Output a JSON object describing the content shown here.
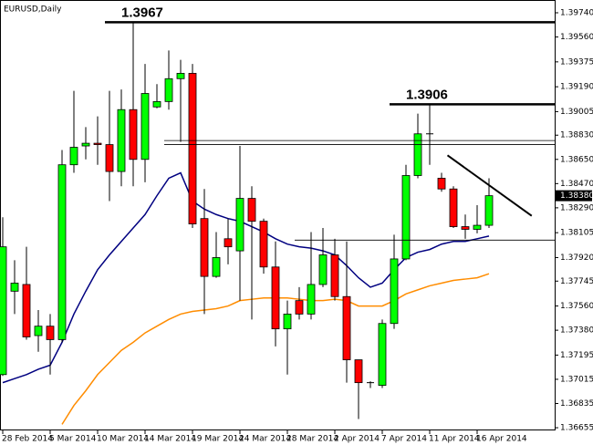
{
  "chart_data": {
    "type": "candlestick",
    "title": "EURUSD,Daily",
    "categories": [
      "28 Feb 2014",
      null,
      null,
      null,
      "5 Mar 2014",
      null,
      null,
      null,
      "10 Mar 2014",
      null,
      null,
      null,
      "14 Mar 2014",
      null,
      null,
      null,
      "19 Mar 2014",
      null,
      null,
      null,
      "24 Mar 2014",
      null,
      null,
      null,
      "28 Mar 2014",
      null,
      null,
      null,
      "2 Apr 2014",
      null,
      null,
      null,
      "7 Apr 2014",
      null,
      null,
      null,
      "11 Apr 2014",
      null,
      null,
      null,
      "16 Apr 2014",
      null
    ],
    "open": [
      1.3705,
      1.3767,
      1.3772,
      1.3734,
      1.3741,
      1.3731,
      1.3861,
      1.3875,
      1.3877,
      1.3876,
      1.3856,
      1.3902,
      1.3865,
      1.3904,
      1.3908,
      1.3925,
      1.3929,
      1.3821,
      1.3778,
      1.3806,
      1.3797,
      1.3836,
      1.3819,
      1.3785,
      1.3739,
      1.376,
      1.375,
      1.3772,
      1.3794,
      1.3763,
      1.3716,
      1.3699,
      1.3697,
      1.3743,
      1.3791,
      1.3853,
      1.3884,
      1.3851,
      1.3843,
      1.3815,
      1.3813,
      1.3816
    ],
    "high": [
      1.3822,
      1.379,
      1.38,
      1.3753,
      1.375,
      1.3872,
      1.3916,
      1.3889,
      1.3897,
      1.3916,
      1.3917,
      1.3967,
      1.3936,
      1.3921,
      1.3946,
      1.3939,
      1.3936,
      1.3843,
      1.3811,
      1.3821,
      1.3875,
      1.3845,
      1.3821,
      1.3804,
      1.376,
      1.377,
      1.3811,
      1.3814,
      1.3806,
      1.3804,
      1.3716,
      1.37,
      1.3746,
      1.3809,
      1.3861,
      1.3899,
      1.3906,
      1.3855,
      1.3845,
      1.3824,
      1.3831,
      1.3851
    ],
    "low": [
      1.3704,
      1.375,
      1.3731,
      1.3722,
      1.3705,
      1.3729,
      1.3855,
      1.3865,
      1.3861,
      1.3834,
      1.3845,
      1.3845,
      1.3848,
      1.3903,
      1.3902,
      1.3878,
      1.3814,
      1.375,
      1.3777,
      1.3787,
      1.376,
      1.3746,
      1.378,
      1.3726,
      1.3705,
      1.3746,
      1.3746,
      1.377,
      1.376,
      1.3699,
      1.3672,
      1.3695,
      1.3695,
      1.3739,
      1.379,
      1.3851,
      1.3861,
      1.3841,
      1.3814,
      1.3806,
      1.381,
      1.3814
    ],
    "close": [
      1.38,
      1.3773,
      1.3733,
      1.3741,
      1.3731,
      1.3861,
      1.3874,
      1.3877,
      1.3876,
      1.3856,
      1.3902,
      1.3865,
      1.3914,
      1.3908,
      1.3925,
      1.3929,
      1.3817,
      1.3778,
      1.3792,
      1.38,
      1.3836,
      1.3819,
      1.3785,
      1.3739,
      1.375,
      1.375,
      1.3772,
      1.3794,
      1.3763,
      1.3716,
      1.3699,
      1.3699,
      1.3743,
      1.3791,
      1.3853,
      1.3884,
      1.3884,
      1.3843,
      1.3815,
      1.3813,
      1.3816,
      1.3838
    ],
    "up_color": "#00ff00",
    "down_color": "#ff0000",
    "series": [
      {
        "color": "#000080",
        "values": [
          1.3699,
          1.3702,
          1.3705,
          1.3709,
          1.3712,
          1.3729,
          1.375,
          1.3767,
          1.3783,
          1.3794,
          1.3804,
          1.3814,
          1.3824,
          1.3838,
          1.3851,
          1.3855,
          1.3834,
          1.3828,
          1.3824,
          1.3821,
          1.3819,
          1.3815,
          1.3811,
          1.3806,
          1.3802,
          1.38,
          1.3799,
          1.3797,
          1.3794,
          1.3786,
          1.3777,
          1.377,
          1.3773,
          1.3783,
          1.3792,
          1.3796,
          1.3798,
          1.3802,
          1.3804,
          1.3804,
          1.3806,
          1.3808
        ]
      },
      {
        "color": "#ff8c00",
        "values": [
          null,
          null,
          null,
          null,
          null,
          1.3668,
          1.3682,
          1.3693,
          1.3705,
          1.3714,
          1.3723,
          1.3729,
          1.3736,
          1.3741,
          1.3746,
          1.375,
          1.3752,
          1.3753,
          1.3754,
          1.3756,
          1.376,
          1.3761,
          1.3762,
          1.3762,
          1.3762,
          1.3761,
          1.376,
          1.376,
          1.3761,
          1.376,
          1.3756,
          1.3756,
          1.3756,
          1.376,
          1.3765,
          1.3768,
          1.3771,
          1.3773,
          1.3775,
          1.3776,
          1.3777,
          1.378
        ]
      }
    ],
    "levels": [
      {
        "value": 1.3967,
        "from_bar": 9,
        "style": "thick",
        "labeled": true
      },
      {
        "value": 1.3906,
        "from_bar": 33,
        "style": "thick",
        "labeled": true
      },
      {
        "value": 1.3879,
        "from_bar": 14,
        "style": "thin",
        "labeled": false
      },
      {
        "value": 1.3876,
        "from_bar": 14,
        "style": "thin",
        "labeled": false
      },
      {
        "value": 1.3805,
        "from_bar": 25,
        "style": "thin",
        "labeled": false
      }
    ],
    "trendline": {
      "from_bar": 37.5,
      "from_value": 1.3868,
      "to_bar": 44.6,
      "to_value": 1.3823
    },
    "current_price": {
      "value": 1.3838,
      "label": "1.38380"
    },
    "ylim": [
      1.36635,
      1.39835
    ],
    "yticks": [
      {
        "value": 1.3974,
        "label": "1.39740"
      },
      {
        "value": 1.3956,
        "label": "1.39560"
      },
      {
        "value": 1.39375,
        "label": "1.39375"
      },
      {
        "value": 1.3919,
        "label": "1.39190"
      },
      {
        "value": 1.39005,
        "label": "1.39005"
      },
      {
        "value": 1.3883,
        "label": "1.38830"
      },
      {
        "value": 1.3865,
        "label": "1.38650"
      },
      {
        "value": 1.3847,
        "label": "1.38470"
      },
      {
        "value": 1.3829,
        "label": "1.38290"
      },
      {
        "value": 1.38105,
        "label": "1.38105"
      },
      {
        "value": 1.3792,
        "label": "1.37920"
      },
      {
        "value": 1.37745,
        "label": "1.37745"
      },
      {
        "value": 1.3756,
        "label": "1.37560"
      },
      {
        "value": 1.3738,
        "label": "1.37380"
      },
      {
        "value": 1.37195,
        "label": "1.37195"
      },
      {
        "value": 1.37015,
        "label": "1.37015"
      },
      {
        "value": 1.36835,
        "label": "1.36835"
      },
      {
        "value": 1.36655,
        "label": "1.36655"
      }
    ]
  }
}
